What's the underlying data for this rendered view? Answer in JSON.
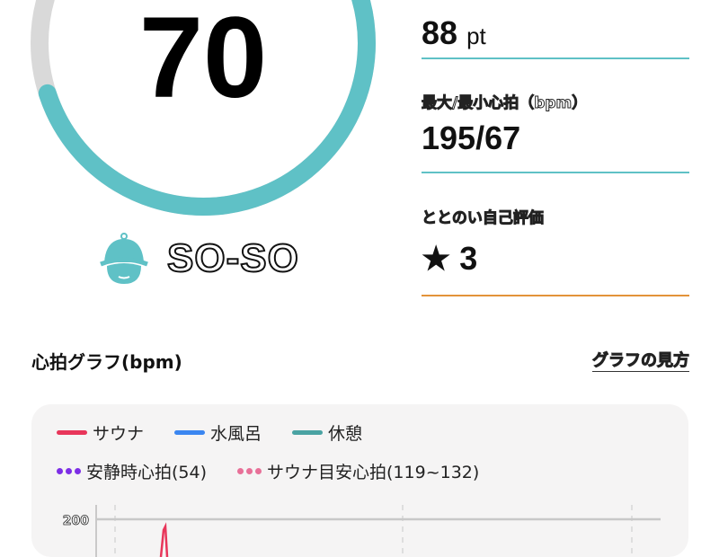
{
  "score": {
    "value": "70",
    "progress_percent": 70,
    "accent_color": "#5fc1c6",
    "track_color": "#d9d9d9"
  },
  "status": {
    "icon": "sauna-hat-face-icon",
    "label": "SO-SO"
  },
  "stats": [
    {
      "label": "",
      "value": "88",
      "unit": "pt",
      "underline_color": "#5fc1c6"
    },
    {
      "label": "最大/最小心拍（bpm）",
      "value": "195/67",
      "underline_color": "#5fc1c6"
    },
    {
      "label": "ととのい自己評価",
      "value": "★ 3",
      "underline_color": "#e39339"
    }
  ],
  "heart_rate_section": {
    "title": "心拍グラフ(bpm)",
    "help_link": "グラフの見方"
  },
  "legend": [
    {
      "label": "サウナ",
      "color": "#e8365a",
      "style": "solid"
    },
    {
      "label": "水風呂",
      "color": "#3b86f0",
      "style": "solid"
    },
    {
      "label": "休憩",
      "color": "#4aa3a3",
      "style": "solid"
    },
    {
      "label": "安静時心拍(54)",
      "color": "#7d2ee6",
      "style": "dotted"
    },
    {
      "label": "サウナ目安心拍(119~132)",
      "color": "#e87098",
      "style": "dotted"
    }
  ],
  "chart_data": {
    "type": "line",
    "yticks": [
      "200"
    ],
    "series": [
      {
        "name": "サウナ",
        "color": "#e8365a",
        "visible_peak": 195
      }
    ]
  }
}
